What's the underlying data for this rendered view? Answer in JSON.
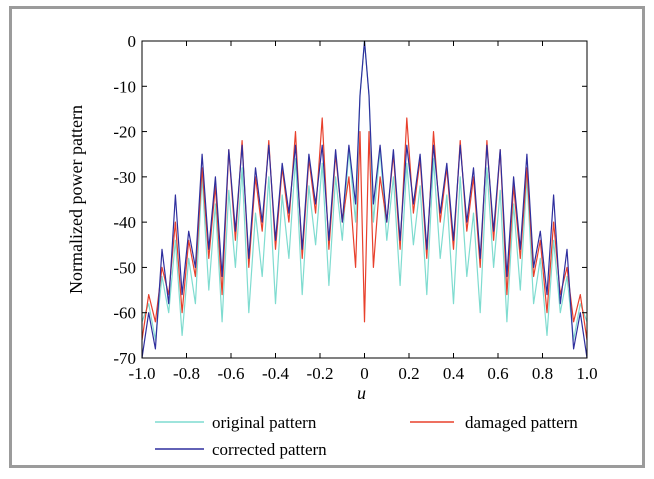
{
  "chart_data": {
    "type": "line",
    "xlabel": "u",
    "ylabel": "Normalized power pattern",
    "xlim": [
      -1.0,
      1.0
    ],
    "ylim": [
      -70,
      0
    ],
    "x_ticks": [
      -1.0,
      -0.8,
      -0.6,
      -0.4,
      -0.2,
      0,
      0.2,
      0.4,
      0.6,
      0.8,
      1.0
    ],
    "x_tick_labels": [
      "-1.0",
      "-0.8",
      "-0.6",
      "-0.4",
      "-0.2",
      "0",
      "0.2",
      "0.4",
      "0.6",
      "0.8",
      "1.0"
    ],
    "y_ticks": [
      0,
      -10,
      -20,
      -30,
      -40,
      -50,
      -60,
      -70
    ],
    "y_tick_labels": [
      "0",
      "-10",
      "-20",
      "-30",
      "-40",
      "-50",
      "-60",
      "-70"
    ],
    "grid": false,
    "legend_position": "bottom",
    "series": [
      {
        "name": "original pattern",
        "color": "#7fdcd0",
        "x": [
          -1.0,
          -0.97,
          -0.94,
          -0.91,
          -0.88,
          -0.85,
          -0.82,
          -0.79,
          -0.76,
          -0.73,
          -0.7,
          -0.67,
          -0.64,
          -0.61,
          -0.58,
          -0.55,
          -0.52,
          -0.49,
          -0.46,
          -0.43,
          -0.4,
          -0.37,
          -0.34,
          -0.31,
          -0.28,
          -0.25,
          -0.22,
          -0.19,
          -0.16,
          -0.13,
          -0.1,
          -0.07,
          -0.04,
          -0.02,
          0,
          0.02,
          0.04,
          0.07,
          0.1,
          0.13,
          0.16,
          0.19,
          0.22,
          0.25,
          0.28,
          0.31,
          0.34,
          0.37,
          0.4,
          0.43,
          0.46,
          0.49,
          0.52,
          0.55,
          0.58,
          0.61,
          0.64,
          0.67,
          0.7,
          0.73,
          0.76,
          0.79,
          0.82,
          0.85,
          0.88,
          0.91,
          0.94,
          0.97,
          1.0
        ],
        "y": [
          -62,
          -58,
          -66,
          -52,
          -60,
          -44,
          -65,
          -48,
          -58,
          -30,
          -55,
          -36,
          -62,
          -33,
          -50,
          -28,
          -60,
          -38,
          -52,
          -30,
          -58,
          -34,
          -48,
          -26,
          -56,
          -32,
          -45,
          -27,
          -54,
          -30,
          -44,
          -24,
          -40,
          -12,
          0,
          -12,
          -40,
          -24,
          -44,
          -30,
          -54,
          -27,
          -45,
          -32,
          -56,
          -26,
          -48,
          -34,
          -58,
          -30,
          -52,
          -38,
          -60,
          -28,
          -50,
          -33,
          -62,
          -36,
          -55,
          -30,
          -58,
          -48,
          -65,
          -44,
          -60,
          -52,
          -66,
          -58,
          -62
        ]
      },
      {
        "name": "damaged pattern",
        "color": "#e8402c",
        "x": [
          -1.0,
          -0.97,
          -0.94,
          -0.91,
          -0.88,
          -0.85,
          -0.82,
          -0.79,
          -0.76,
          -0.73,
          -0.7,
          -0.67,
          -0.64,
          -0.61,
          -0.58,
          -0.55,
          -0.52,
          -0.49,
          -0.46,
          -0.43,
          -0.4,
          -0.37,
          -0.34,
          -0.31,
          -0.28,
          -0.25,
          -0.22,
          -0.19,
          -0.16,
          -0.13,
          -0.1,
          -0.07,
          -0.04,
          -0.02,
          0,
          0.02,
          0.04,
          0.07,
          0.1,
          0.13,
          0.16,
          0.19,
          0.22,
          0.25,
          0.28,
          0.31,
          0.34,
          0.37,
          0.4,
          0.43,
          0.46,
          0.49,
          0.52,
          0.55,
          0.58,
          0.61,
          0.64,
          0.67,
          0.7,
          0.73,
          0.76,
          0.79,
          0.82,
          0.85,
          0.88,
          0.91,
          0.94,
          0.97,
          1.0
        ],
        "y": [
          -66,
          -56,
          -62,
          -50,
          -56,
          -40,
          -60,
          -44,
          -52,
          -28,
          -48,
          -32,
          -56,
          -24,
          -44,
          -22,
          -50,
          -30,
          -42,
          -22,
          -46,
          -28,
          -40,
          -20,
          -48,
          -26,
          -38,
          -17,
          -46,
          -25,
          -40,
          -30,
          -50,
          -20,
          -62,
          -20,
          -50,
          -30,
          -40,
          -25,
          -46,
          -17,
          -38,
          -26,
          -48,
          -20,
          -40,
          -28,
          -46,
          -22,
          -42,
          -30,
          -50,
          -22,
          -44,
          -24,
          -56,
          -32,
          -48,
          -28,
          -52,
          -44,
          -60,
          -40,
          -56,
          -50,
          -62,
          -56,
          -66
        ]
      },
      {
        "name": "corrected pattern",
        "color": "#2f2f9e",
        "x": [
          -1.0,
          -0.97,
          -0.94,
          -0.91,
          -0.88,
          -0.85,
          -0.82,
          -0.79,
          -0.76,
          -0.73,
          -0.7,
          -0.67,
          -0.64,
          -0.61,
          -0.58,
          -0.55,
          -0.52,
          -0.49,
          -0.46,
          -0.43,
          -0.4,
          -0.37,
          -0.34,
          -0.31,
          -0.28,
          -0.25,
          -0.22,
          -0.19,
          -0.16,
          -0.13,
          -0.1,
          -0.07,
          -0.04,
          -0.02,
          0,
          0.02,
          0.04,
          0.07,
          0.1,
          0.13,
          0.16,
          0.19,
          0.22,
          0.25,
          0.28,
          0.31,
          0.34,
          0.37,
          0.4,
          0.43,
          0.46,
          0.49,
          0.52,
          0.55,
          0.58,
          0.61,
          0.64,
          0.67,
          0.7,
          0.73,
          0.76,
          0.79,
          0.82,
          0.85,
          0.88,
          0.91,
          0.94,
          0.97,
          1.0
        ],
        "y": [
          -70,
          -60,
          -68,
          -46,
          -58,
          -34,
          -56,
          -42,
          -50,
          -25,
          -46,
          -30,
          -52,
          -24,
          -42,
          -23,
          -48,
          -28,
          -40,
          -23,
          -44,
          -27,
          -38,
          -23,
          -46,
          -25,
          -36,
          -23,
          -44,
          -24,
          -40,
          -23,
          -36,
          -12,
          0,
          -12,
          -36,
          -23,
          -40,
          -24,
          -44,
          -23,
          -36,
          -25,
          -46,
          -23,
          -38,
          -27,
          -44,
          -23,
          -40,
          -28,
          -48,
          -23,
          -42,
          -24,
          -52,
          -30,
          -46,
          -25,
          -50,
          -42,
          -56,
          -34,
          -58,
          -46,
          -68,
          -60,
          -70
        ]
      }
    ]
  }
}
